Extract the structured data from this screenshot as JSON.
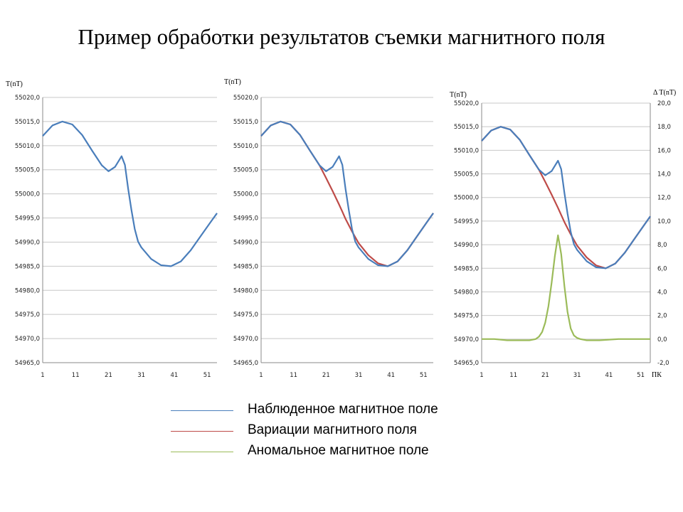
{
  "title": "Пример обработки результатов съемки магнитного поля",
  "colors": {
    "observed": "#4a7ebb",
    "variation": "#be4b48",
    "anomaly": "#9bbb59"
  },
  "legend": [
    {
      "label": "Наблюденное магнитное поле",
      "color": "#4a7ebb"
    },
    {
      "label": "Вариации магнитного поля",
      "color": "#be4b48"
    },
    {
      "label": "Аномальное магнитное поле",
      "color": "#9bbb59"
    }
  ],
  "chart_data": [
    {
      "type": "line",
      "ylabel": "T(nT)",
      "ylim": [
        54965,
        55020
      ],
      "yticks": [
        "54965,0",
        "54970,0",
        "54975,0",
        "54980,0",
        "54985,0",
        "54990,0",
        "54995,0",
        "55000,0",
        "55005,0",
        "55010,0",
        "55015,0",
        "55020,0"
      ],
      "xtick_labels": [
        "1",
        "11",
        "21",
        "31",
        "41",
        "51"
      ],
      "grid": "horizontal",
      "x": [
        1,
        4,
        7,
        10,
        13,
        16,
        19,
        21,
        23,
        25,
        26,
        27,
        28,
        29,
        30,
        31,
        34,
        37,
        40,
        43,
        46,
        49,
        52,
        54
      ],
      "series": [
        {
          "key": "observed",
          "values": [
            55012,
            55014.2,
            55015,
            55014.4,
            55012.2,
            55009,
            55005.9,
            55004.7,
            55005.6,
            55007.8,
            55006,
            55001,
            54996.6,
            54992.7,
            54990.1,
            54988.9,
            54986.5,
            54985.2,
            54985,
            54986,
            54988.3,
            54991.2,
            54994.1,
            54996
          ]
        }
      ]
    },
    {
      "type": "line",
      "ylabel": "T(nT)",
      "ylim": [
        54965,
        55020
      ],
      "yticks": [
        "54965,0",
        "54970,0",
        "54975,0",
        "54980,0",
        "54985,0",
        "54990,0",
        "54995,0",
        "55000,0",
        "55005,0",
        "55010,0",
        "55015,0",
        "55020,0"
      ],
      "xtick_labels": [
        "1",
        "11",
        "21",
        "31",
        "41",
        "51"
      ],
      "grid": "horizontal",
      "x": [
        1,
        4,
        7,
        10,
        13,
        16,
        19,
        21,
        23,
        25,
        26,
        27,
        28,
        29,
        30,
        31,
        34,
        37,
        40,
        43,
        46,
        49,
        52,
        54
      ],
      "series": [
        {
          "key": "observed",
          "values": [
            55012,
            55014.2,
            55015,
            55014.4,
            55012.2,
            55009,
            55005.9,
            55004.7,
            55005.6,
            55007.8,
            55006,
            55001,
            54996.6,
            54992.7,
            54990.1,
            54988.9,
            54986.5,
            54985.2,
            54985,
            54986,
            54988.3,
            54991.2,
            54994.1,
            54996
          ]
        },
        {
          "key": "variation",
          "values": [
            55012,
            55014.2,
            55015,
            55014.4,
            55012.2,
            55009,
            55005.9,
            55003.3,
            55000.6,
            54997.8,
            54996.3,
            54994.8,
            54993.5,
            54992.2,
            54991,
            54989.8,
            54987.3,
            54985.6,
            54985,
            54986,
            54988.3,
            54991.2,
            54994.1,
            54996
          ]
        }
      ]
    },
    {
      "type": "line",
      "ylabel": "T(nT)",
      "ylabel_right": "Δ T(nT)",
      "xlabel": "ПК",
      "ylim": [
        54965,
        55020
      ],
      "ylim_right": [
        -2,
        20
      ],
      "yticks": [
        "54965,0",
        "54970,0",
        "54975,0",
        "54980,0",
        "54985,0",
        "54990,0",
        "54995,0",
        "55000,0",
        "55005,0",
        "55010,0",
        "55015,0",
        "55020,0"
      ],
      "yticks_right": [
        "-2,0",
        "0,0",
        "2,0",
        "4,0",
        "6,0",
        "8,0",
        "10,0",
        "12,0",
        "14,0",
        "16,0",
        "18,0",
        "20,0"
      ],
      "xtick_labels": [
        "1",
        "11",
        "21",
        "31",
        "41",
        "51"
      ],
      "grid": "horizontal",
      "x": [
        1,
        4,
        7,
        10,
        13,
        16,
        19,
        21,
        23,
        25,
        26,
        27,
        28,
        29,
        30,
        31,
        34,
        37,
        40,
        43,
        46,
        49,
        52,
        54
      ],
      "series": [
        {
          "key": "observed",
          "values": [
            55012,
            55014.2,
            55015,
            55014.4,
            55012.2,
            55009,
            55005.9,
            55004.7,
            55005.6,
            55007.8,
            55006,
            55001,
            54996.6,
            54992.7,
            54990.1,
            54988.9,
            54986.5,
            54985.2,
            54985,
            54986,
            54988.3,
            54991.2,
            54994.1,
            54996
          ]
        },
        {
          "key": "variation",
          "values": [
            55012,
            55014.2,
            55015,
            55014.4,
            55012.2,
            55009,
            55005.9,
            55003.3,
            55000.6,
            54997.8,
            54996.3,
            54994.8,
            54993.5,
            54992.2,
            54991,
            54989.8,
            54987.3,
            54985.6,
            54985,
            54986,
            54988.3,
            54991.2,
            54994.1,
            54996
          ]
        }
      ],
      "series_right": [
        {
          "key": "anomaly",
          "x": [
            1,
            5,
            9,
            13,
            16,
            18,
            19,
            20,
            21,
            22,
            23,
            24,
            25,
            26,
            27,
            28,
            29,
            30,
            31,
            32,
            34,
            38,
            44,
            50,
            54
          ],
          "values": [
            0,
            0,
            -0.1,
            -0.1,
            -0.1,
            0,
            0.2,
            0.6,
            1.4,
            2.8,
            4.8,
            7,
            8.8,
            7.2,
            4.5,
            2.3,
            0.9,
            0.3,
            0.1,
            0,
            -0.1,
            -0.1,
            0,
            0,
            0
          ]
        }
      ]
    }
  ]
}
